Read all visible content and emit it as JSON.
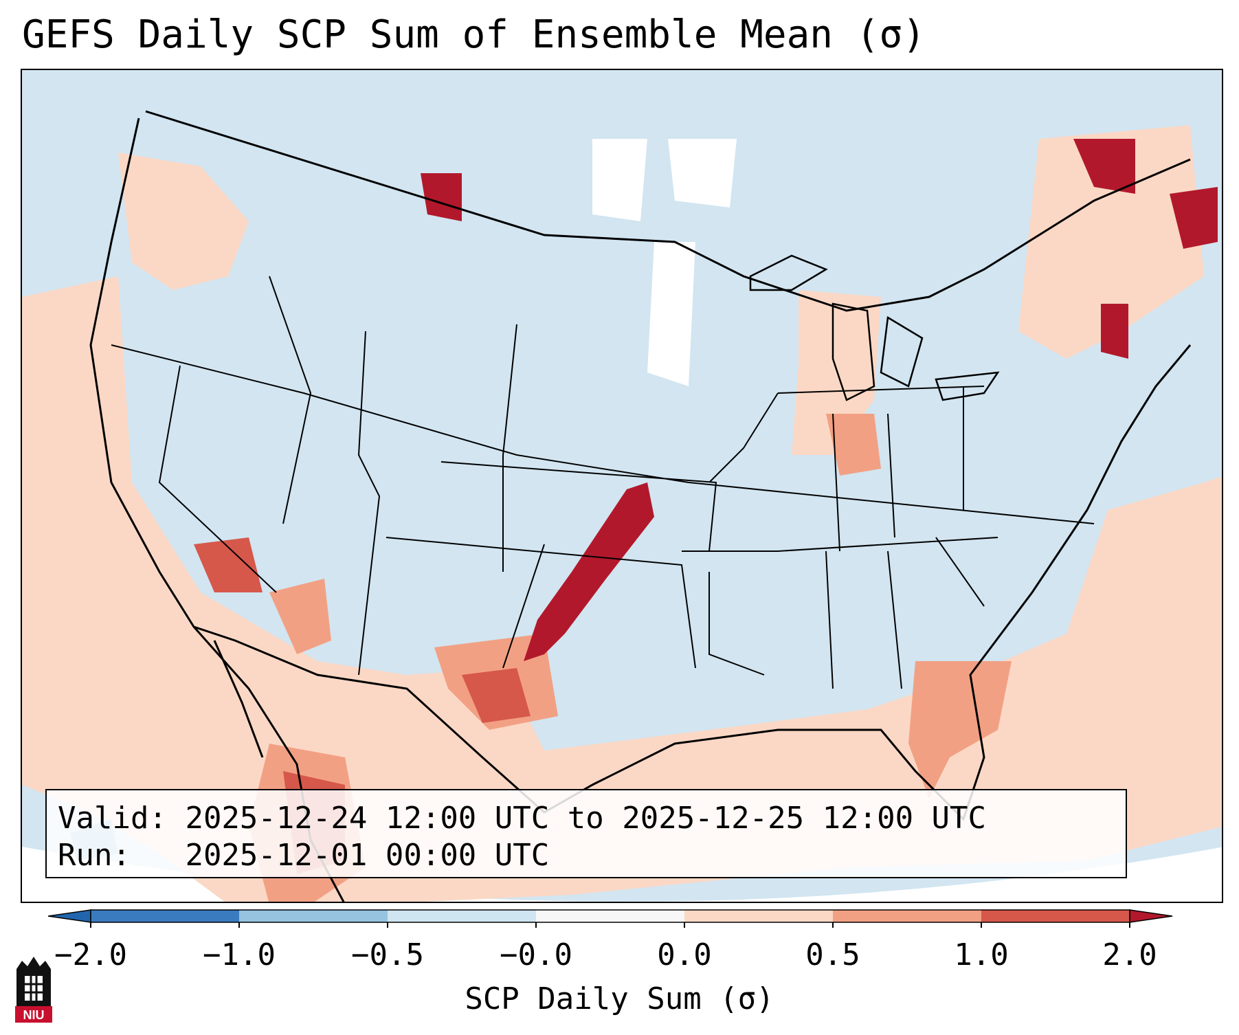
{
  "title": "GEFS Daily SCP Sum of Ensemble Mean (σ)",
  "info": {
    "valid_label": "Valid:",
    "valid_text": "2025-12-24 12:00 UTC to 2025-12-25 12:00 UTC",
    "run_label": "Run:",
    "run_text": "2025-12-01 00:00 UTC"
  },
  "colorbar": {
    "label": "SCP Daily Sum (σ)",
    "ticks": [
      "−2.0",
      "−1.0",
      "−0.5",
      "−0.0",
      "0.0",
      "0.5",
      "1.0",
      "2.0"
    ],
    "colors": [
      "#3a7bbf",
      "#95c3e0",
      "#d0e5f2",
      "#f7f7f7",
      "#fbd8c5",
      "#f2a084",
      "#d6584b"
    ],
    "under_color": "#2166ac",
    "over_color": "#b2182b"
  },
  "map_colors": {
    "background": "#d2e5f1",
    "light_positive": "#fbd8c5",
    "medium_positive": "#f2a084",
    "strong_positive": "#d6584b",
    "extreme_positive": "#b2182b",
    "neutral": "#ffffff",
    "light_negative": "#95c3e0"
  },
  "logo": {
    "text": "NIU",
    "color": "#c8102e"
  }
}
